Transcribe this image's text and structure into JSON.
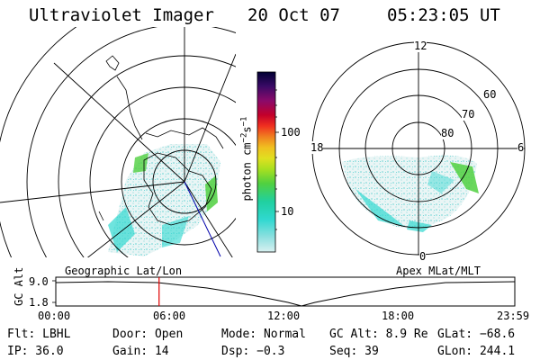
{
  "header": {
    "instrument": "Ultraviolet Imager",
    "date": "20 Oct 07",
    "time": "05:23:05 UT"
  },
  "colorbar": {
    "unit_label": "photon cm",
    "unit_sup1": "−2",
    "unit_mid": "s",
    "unit_sup2": "−1",
    "tick_100": "100",
    "tick_10": "10",
    "stops": [
      "#000033",
      "#3a0a66",
      "#8a0a6a",
      "#c4002a",
      "#f03020",
      "#f08020",
      "#f0c020",
      "#e0e020",
      "#a8e020",
      "#50d040",
      "#20d0a0",
      "#30d8d0",
      "#90e0e0",
      "#d8f0f0"
    ]
  },
  "geo_panel": {
    "label": "Geographic Lat/Lon"
  },
  "apex_panel": {
    "label": "Apex MLat/MLT",
    "mlt_12": "12",
    "mlt_18": "18",
    "mlt_6": "6",
    "mlt_0": "0",
    "lat_60": "60",
    "lat_70": "70",
    "lat_80": "80"
  },
  "timeline": {
    "axis_label": "GC Alt",
    "y_top": "9.0",
    "y_bottom": "1.8",
    "ticks": [
      "00:00",
      "06:00",
      "12:00",
      "18:00",
      "23:59"
    ],
    "current_time_fraction": 0.225
  },
  "status": {
    "filter": "Flt: LBHL",
    "door": "Door: Open",
    "mode": "Mode: Normal",
    "gc_alt": "GC Alt: 8.9 Re",
    "glat": "GLat: −68.6",
    "ip": "IP: 36.0",
    "gain": "Gain: 14",
    "dsp": "Dsp:   −0.3",
    "seq": "Seq: 39",
    "glon": "GLon: 244.1"
  },
  "colors": {
    "accent_red": "#e00000",
    "aurora_green": "#50d040",
    "aurora_cyan": "#30d8d0"
  }
}
